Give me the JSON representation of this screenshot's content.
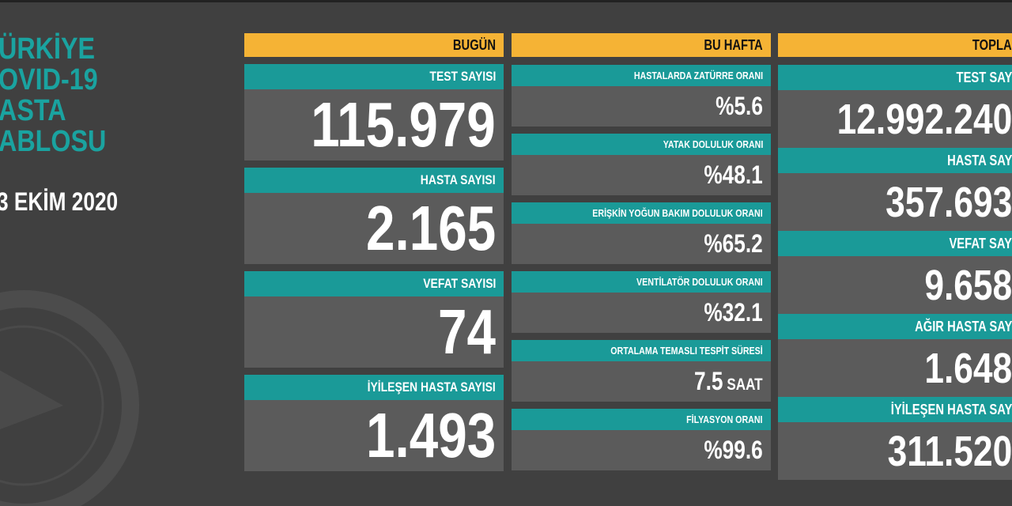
{
  "title_lines": [
    "ÜRKİYE",
    "OVID-19",
    "ASTA",
    "ABLOSU"
  ],
  "date": "3 EKİM 2020",
  "today": {
    "header": "BUGÜN",
    "rows": [
      {
        "label": "TEST SAYISI",
        "value": "115.979"
      },
      {
        "label": "HASTA SAYISI",
        "value": "2.165"
      },
      {
        "label": "VEFAT SAYISI",
        "value": "74"
      },
      {
        "label": "İYİLEŞEN HASTA SAYISI",
        "value": "1.493"
      }
    ]
  },
  "week": {
    "header": "BU HAFTA",
    "rows": [
      {
        "label": "HASTALARDA ZATÜRRE ORANI",
        "value": "%5.6"
      },
      {
        "label": "YATAK DOLULUK ORANI",
        "value": "%48.1"
      },
      {
        "label": "ERİŞKİN YOĞUN BAKIM DOLULUK ORANI",
        "value": "%65.2"
      },
      {
        "label": "VENTİLATÖR DOLULUK ORANI",
        "value": "%32.1"
      },
      {
        "label": "ORTALAMA TEMASLI TESPİT SÜRESİ",
        "value": "7.5",
        "unit": "SAAT"
      },
      {
        "label": "FİLYASYON ORANI",
        "value": "%99.6"
      }
    ]
  },
  "total": {
    "header": "TOPLA",
    "rows": [
      {
        "label": "TEST SAY",
        "value": "12.992.240"
      },
      {
        "label": "HASTA SAY",
        "value": "357.693"
      },
      {
        "label": "VEFAT SAY",
        "value": "9.658"
      },
      {
        "label": "AĞIR HASTA SAY",
        "value": "1.648"
      },
      {
        "label": "İYİLEŞEN HASTA SAY",
        "value": "311.520"
      }
    ]
  }
}
